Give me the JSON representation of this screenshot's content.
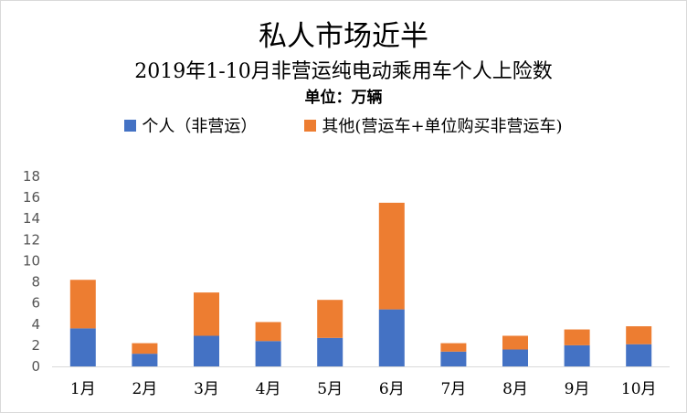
{
  "titles": {
    "main": "私人市场近半",
    "sub": "2019年1-10月非营运纯电动乘用车个人上险数",
    "unit": "单位：万辆"
  },
  "legend": [
    {
      "label": "个人（非营运）",
      "color": "#4472C4"
    },
    {
      "label": "其他(营运车+单位购买非营运车)",
      "color": "#ED7D31"
    }
  ],
  "chart_data": {
    "type": "bar",
    "stacked": true,
    "title": "私人市场近半",
    "subtitle": "2019年1-10月非营运纯电动乘用车个人上险数",
    "unit": "单位：万辆",
    "categories": [
      "1月",
      "2月",
      "3月",
      "4月",
      "5月",
      "6月",
      "7月",
      "8月",
      "9月",
      "10月"
    ],
    "series": [
      {
        "name": "个人（非营运）",
        "color": "#4472C4",
        "values": [
          3.6,
          1.2,
          2.9,
          2.4,
          2.7,
          5.4,
          1.4,
          1.6,
          2.0,
          2.1
        ]
      },
      {
        "name": "其他(营运车+单位购买非营运车)",
        "color": "#ED7D31",
        "values": [
          4.6,
          1.0,
          4.1,
          1.8,
          3.6,
          10.1,
          0.8,
          1.3,
          1.5,
          1.7
        ]
      }
    ],
    "yticks": [
      "0",
      "2",
      "4",
      "6",
      "8",
      "10",
      "12",
      "14",
      "16",
      "18"
    ],
    "ylim": [
      0,
      18
    ],
    "grid": false,
    "legend_position": "top"
  }
}
